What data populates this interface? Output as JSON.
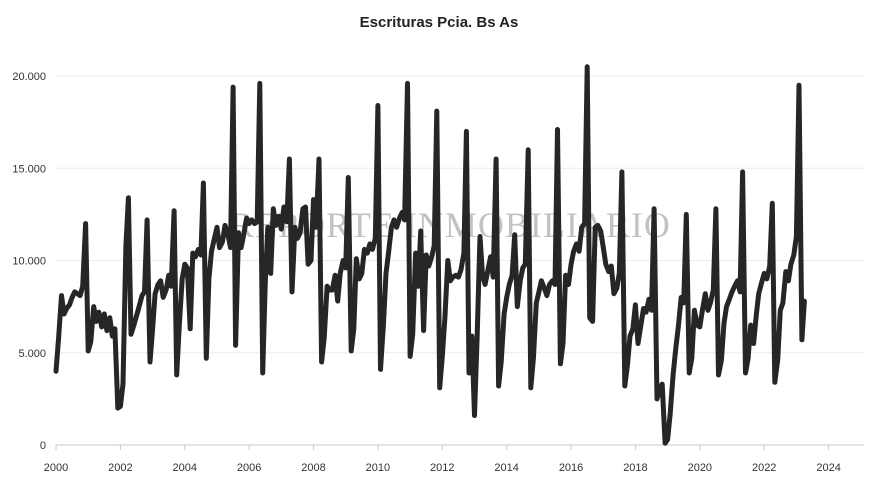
{
  "chart_data": {
    "type": "line",
    "title": "Escrituras Pcia. Bs As",
    "watermark": "REPORTE INMOBILIARIO",
    "xlabel": "",
    "ylabel": "",
    "xlim": [
      2000,
      2025.1
    ],
    "ylim": [
      0,
      20000
    ],
    "xticks": [
      2000,
      2002,
      2004,
      2006,
      2008,
      2010,
      2012,
      2014,
      2016,
      2018,
      2020,
      2022,
      2024
    ],
    "xtick_labels": [
      "2000",
      "2002",
      "2004",
      "2006",
      "2008",
      "2010",
      "2012",
      "2014",
      "2016",
      "2018",
      "2020",
      "2022",
      "2024"
    ],
    "yticks": [
      0,
      5000,
      10000,
      15000,
      20000
    ],
    "ytick_labels": [
      "0",
      "5.000",
      "10.000",
      "15.000",
      "20.000"
    ],
    "grid": true,
    "line_color": "#262626",
    "series": [
      {
        "values": [
          [
            2000.0,
            4000
          ],
          [
            2000.08,
            5800
          ],
          [
            2000.17,
            8100
          ],
          [
            2000.25,
            7100
          ],
          [
            2000.33,
            7400
          ],
          [
            2000.42,
            7600
          ],
          [
            2000.5,
            8000
          ],
          [
            2000.58,
            8300
          ],
          [
            2000.67,
            8200
          ],
          [
            2000.75,
            8100
          ],
          [
            2000.83,
            8600
          ],
          [
            2000.92,
            12000
          ],
          [
            2001.0,
            5100
          ],
          [
            2001.08,
            5600
          ],
          [
            2001.17,
            7500
          ],
          [
            2001.25,
            6700
          ],
          [
            2001.33,
            7200
          ],
          [
            2001.42,
            6400
          ],
          [
            2001.5,
            7100
          ],
          [
            2001.58,
            6200
          ],
          [
            2001.67,
            6900
          ],
          [
            2001.75,
            5900
          ],
          [
            2001.83,
            6300
          ],
          [
            2001.92,
            2000
          ],
          [
            2002.0,
            2100
          ],
          [
            2002.08,
            3300
          ],
          [
            2002.17,
            10800
          ],
          [
            2002.25,
            13400
          ],
          [
            2002.33,
            6000
          ],
          [
            2002.42,
            6500
          ],
          [
            2002.5,
            7000
          ],
          [
            2002.58,
            7500
          ],
          [
            2002.67,
            8100
          ],
          [
            2002.75,
            8300
          ],
          [
            2002.83,
            12200
          ],
          [
            2002.92,
            4500
          ],
          [
            2003.0,
            6300
          ],
          [
            2003.08,
            8200
          ],
          [
            2003.17,
            8700
          ],
          [
            2003.25,
            8900
          ],
          [
            2003.33,
            8000
          ],
          [
            2003.42,
            8400
          ],
          [
            2003.5,
            9200
          ],
          [
            2003.58,
            8600
          ],
          [
            2003.67,
            12700
          ],
          [
            2003.75,
            3800
          ],
          [
            2003.83,
            6500
          ],
          [
            2003.92,
            9000
          ],
          [
            2004.0,
            9800
          ],
          [
            2004.08,
            9600
          ],
          [
            2004.17,
            6300
          ],
          [
            2004.25,
            10400
          ],
          [
            2004.33,
            10200
          ],
          [
            2004.42,
            10600
          ],
          [
            2004.5,
            10300
          ],
          [
            2004.58,
            14200
          ],
          [
            2004.67,
            4700
          ],
          [
            2004.75,
            9000
          ],
          [
            2004.83,
            10500
          ],
          [
            2004.92,
            11200
          ],
          [
            2005.0,
            11800
          ],
          [
            2005.08,
            10700
          ],
          [
            2005.17,
            11000
          ],
          [
            2005.25,
            11900
          ],
          [
            2005.33,
            11500
          ],
          [
            2005.42,
            10700
          ],
          [
            2005.5,
            19400
          ],
          [
            2005.58,
            5400
          ],
          [
            2005.67,
            11500
          ],
          [
            2005.75,
            10700
          ],
          [
            2005.83,
            11400
          ],
          [
            2005.92,
            12300
          ],
          [
            2006.0,
            12000
          ],
          [
            2006.08,
            12200
          ],
          [
            2006.17,
            12000
          ],
          [
            2006.25,
            12100
          ],
          [
            2006.33,
            19600
          ],
          [
            2006.42,
            3900
          ],
          [
            2006.5,
            8700
          ],
          [
            2006.58,
            11800
          ],
          [
            2006.67,
            9300
          ],
          [
            2006.75,
            12800
          ],
          [
            2006.83,
            11900
          ],
          [
            2006.92,
            12400
          ],
          [
            2007.0,
            11700
          ],
          [
            2007.08,
            12900
          ],
          [
            2007.17,
            12100
          ],
          [
            2007.25,
            15500
          ],
          [
            2007.33,
            8300
          ],
          [
            2007.42,
            11800
          ],
          [
            2007.5,
            11200
          ],
          [
            2007.58,
            11500
          ],
          [
            2007.67,
            12800
          ],
          [
            2007.75,
            12900
          ],
          [
            2007.83,
            9800
          ],
          [
            2007.92,
            10000
          ],
          [
            2008.0,
            13300
          ],
          [
            2008.08,
            11800
          ],
          [
            2008.17,
            15500
          ],
          [
            2008.25,
            4500
          ],
          [
            2008.33,
            5800
          ],
          [
            2008.42,
            8600
          ],
          [
            2008.5,
            8400
          ],
          [
            2008.58,
            8400
          ],
          [
            2008.67,
            9200
          ],
          [
            2008.75,
            7800
          ],
          [
            2008.83,
            9300
          ],
          [
            2008.92,
            10000
          ],
          [
            2009.0,
            9600
          ],
          [
            2009.08,
            14500
          ],
          [
            2009.17,
            5100
          ],
          [
            2009.25,
            6300
          ],
          [
            2009.33,
            10100
          ],
          [
            2009.42,
            9000
          ],
          [
            2009.5,
            9300
          ],
          [
            2009.58,
            10600
          ],
          [
            2009.67,
            10400
          ],
          [
            2009.75,
            10900
          ],
          [
            2009.83,
            10600
          ],
          [
            2009.92,
            11200
          ],
          [
            2010.0,
            18400
          ],
          [
            2010.08,
            4100
          ],
          [
            2010.17,
            6500
          ],
          [
            2010.25,
            9300
          ],
          [
            2010.33,
            10400
          ],
          [
            2010.42,
            11800
          ],
          [
            2010.5,
            12200
          ],
          [
            2010.58,
            11800
          ],
          [
            2010.67,
            12300
          ],
          [
            2010.75,
            12600
          ],
          [
            2010.83,
            12200
          ],
          [
            2010.92,
            19600
          ],
          [
            2011.0,
            4800
          ],
          [
            2011.08,
            6000
          ],
          [
            2011.17,
            10400
          ],
          [
            2011.25,
            8600
          ],
          [
            2011.33,
            11600
          ],
          [
            2011.42,
            6200
          ],
          [
            2011.5,
            10300
          ],
          [
            2011.58,
            9700
          ],
          [
            2011.67,
            10200
          ],
          [
            2011.75,
            10800
          ],
          [
            2011.83,
            18100
          ],
          [
            2011.92,
            3100
          ],
          [
            2012.0,
            4800
          ],
          [
            2012.08,
            6900
          ],
          [
            2012.17,
            10000
          ],
          [
            2012.25,
            8900
          ],
          [
            2012.33,
            9100
          ],
          [
            2012.42,
            9200
          ],
          [
            2012.5,
            9100
          ],
          [
            2012.58,
            9500
          ],
          [
            2012.67,
            10400
          ],
          [
            2012.75,
            17000
          ],
          [
            2012.83,
            3900
          ],
          [
            2012.92,
            5900
          ],
          [
            2013.0,
            1600
          ],
          [
            2013.08,
            5800
          ],
          [
            2013.17,
            11300
          ],
          [
            2013.25,
            9200
          ],
          [
            2013.33,
            8700
          ],
          [
            2013.42,
            9500
          ],
          [
            2013.5,
            10200
          ],
          [
            2013.58,
            9100
          ],
          [
            2013.67,
            15500
          ],
          [
            2013.75,
            3200
          ],
          [
            2013.83,
            4500
          ],
          [
            2013.92,
            7100
          ],
          [
            2014.0,
            8000
          ],
          [
            2014.08,
            8700
          ],
          [
            2014.17,
            9200
          ],
          [
            2014.25,
            11400
          ],
          [
            2014.33,
            7500
          ],
          [
            2014.42,
            8900
          ],
          [
            2014.5,
            9600
          ],
          [
            2014.58,
            9800
          ],
          [
            2014.67,
            16000
          ],
          [
            2014.75,
            3100
          ],
          [
            2014.83,
            4700
          ],
          [
            2014.92,
            7700
          ],
          [
            2015.0,
            8300
          ],
          [
            2015.08,
            8900
          ],
          [
            2015.17,
            8500
          ],
          [
            2015.25,
            8100
          ],
          [
            2015.33,
            8700
          ],
          [
            2015.42,
            8900
          ],
          [
            2015.5,
            8700
          ],
          [
            2015.58,
            17100
          ],
          [
            2015.67,
            4400
          ],
          [
            2015.75,
            5500
          ],
          [
            2015.83,
            9200
          ],
          [
            2015.92,
            8700
          ],
          [
            2016.0,
            9800
          ],
          [
            2016.08,
            10500
          ],
          [
            2016.17,
            10900
          ],
          [
            2016.25,
            10500
          ],
          [
            2016.33,
            11800
          ],
          [
            2016.42,
            12000
          ],
          [
            2016.5,
            20500
          ],
          [
            2016.58,
            6900
          ],
          [
            2016.67,
            6700
          ],
          [
            2016.75,
            11800
          ],
          [
            2016.83,
            11900
          ],
          [
            2016.92,
            11600
          ],
          [
            2017.0,
            10700
          ],
          [
            2017.08,
            9800
          ],
          [
            2017.17,
            9400
          ],
          [
            2017.25,
            9700
          ],
          [
            2017.33,
            8200
          ],
          [
            2017.42,
            8500
          ],
          [
            2017.5,
            9300
          ],
          [
            2017.58,
            14800
          ],
          [
            2017.67,
            3200
          ],
          [
            2017.75,
            4300
          ],
          [
            2017.83,
            5900
          ],
          [
            2017.92,
            6300
          ],
          [
            2018.0,
            7600
          ],
          [
            2018.08,
            5500
          ],
          [
            2018.17,
            6500
          ],
          [
            2018.25,
            7400
          ],
          [
            2018.33,
            7200
          ],
          [
            2018.42,
            7900
          ],
          [
            2018.5,
            7300
          ],
          [
            2018.58,
            12800
          ],
          [
            2018.67,
            2500
          ],
          [
            2018.75,
            3000
          ],
          [
            2018.83,
            3300
          ],
          [
            2018.92,
            100
          ],
          [
            2019.0,
            300
          ],
          [
            2019.08,
            1700
          ],
          [
            2019.17,
            3800
          ],
          [
            2019.25,
            5200
          ],
          [
            2019.33,
            6400
          ],
          [
            2019.42,
            8000
          ],
          [
            2019.5,
            7700
          ],
          [
            2019.58,
            12500
          ],
          [
            2019.67,
            3900
          ],
          [
            2019.75,
            4700
          ],
          [
            2019.83,
            7300
          ],
          [
            2019.92,
            6500
          ],
          [
            2020.0,
            6400
          ],
          [
            2020.08,
            7300
          ],
          [
            2020.17,
            8200
          ],
          [
            2020.25,
            7300
          ],
          [
            2020.33,
            7700
          ],
          [
            2020.42,
            8400
          ],
          [
            2020.5,
            12800
          ],
          [
            2020.58,
            3800
          ],
          [
            2020.67,
            4600
          ],
          [
            2020.75,
            6600
          ],
          [
            2020.83,
            7500
          ],
          [
            2020.92,
            7900
          ],
          [
            2021.0,
            8300
          ],
          [
            2021.08,
            8600
          ],
          [
            2021.17,
            8900
          ],
          [
            2021.25,
            8300
          ],
          [
            2021.33,
            14800
          ],
          [
            2021.42,
            3900
          ],
          [
            2021.5,
            4700
          ],
          [
            2021.58,
            6500
          ],
          [
            2021.67,
            5500
          ],
          [
            2021.75,
            7000
          ],
          [
            2021.83,
            8200
          ],
          [
            2021.92,
            8800
          ],
          [
            2022.0,
            9300
          ],
          [
            2022.08,
            9000
          ],
          [
            2022.17,
            9700
          ],
          [
            2022.25,
            13100
          ],
          [
            2022.33,
            3400
          ],
          [
            2022.42,
            4600
          ],
          [
            2022.5,
            7300
          ],
          [
            2022.58,
            7700
          ],
          [
            2022.67,
            9400
          ],
          [
            2022.75,
            8900
          ],
          [
            2022.83,
            9800
          ],
          [
            2022.92,
            10300
          ],
          [
            2023.0,
            11300
          ],
          [
            2023.08,
            19500
          ],
          [
            2023.17,
            5700
          ],
          [
            2023.25,
            7800
          ]
        ]
      }
    ]
  }
}
